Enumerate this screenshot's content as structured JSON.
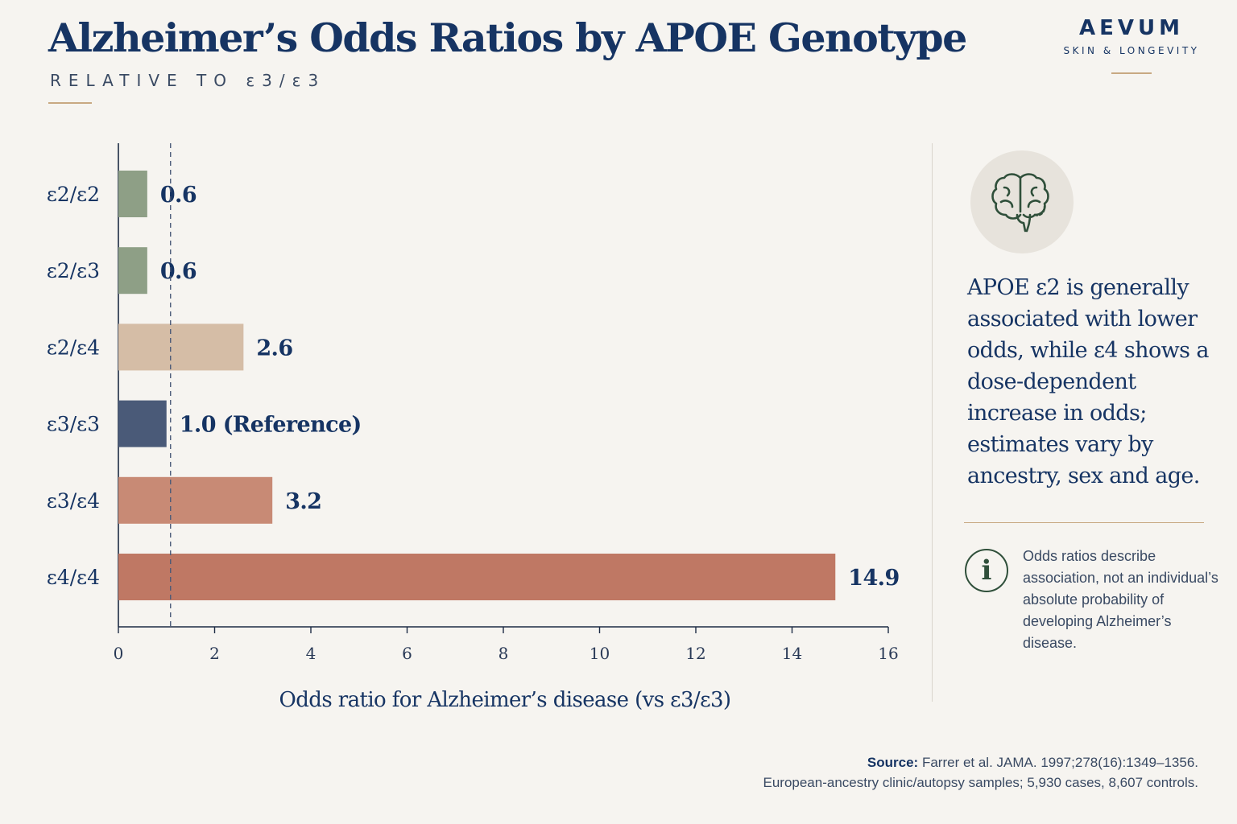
{
  "header": {
    "title": "Alzheimer’s Odds Ratios by APOE Genotype",
    "subtitle": "RELATIVE TO ε3/ε3"
  },
  "brand": {
    "name": "AEVUM",
    "tagline": "SKIN & LONGEVITY"
  },
  "panel": {
    "icon": "brain-icon",
    "text": "APOE ε2 is generally associated with lower odds, while ε4 shows a dose-dependent increase in odds; estimates vary by ancestry, sex and age.",
    "info_icon": "info-icon",
    "info_glyph": "i",
    "note": "Odds ratios describe association, not an individual’s absolute probability of developing Alzheimer’s disease."
  },
  "source": {
    "label": "Source:",
    "citation": "Farrer et al. JAMA. 1997;278(16):1349–1356.",
    "detail": "European-ancestry clinic/autopsy samples; 5,930 cases, 8,607 controls."
  },
  "chart_data": {
    "type": "bar",
    "orientation": "horizontal",
    "categories": [
      "ε2/ε2",
      "ε2/ε3",
      "ε2/ε4",
      "ε3/ε3",
      "ε3/ε4",
      "ε4/ε4"
    ],
    "values": [
      0.6,
      0.6,
      2.6,
      1.0,
      3.2,
      14.9
    ],
    "data_labels": [
      "0.6",
      "0.6",
      "2.6",
      "1.0 (Reference)",
      "3.2",
      "14.9"
    ],
    "colors": [
      "#8e9f86",
      "#8e9f86",
      "#d5bda6",
      "#4a5a78",
      "#c88a75",
      "#bf7864"
    ],
    "label_color": "#163463",
    "xlabel": "Odds ratio for Alzheimer’s disease (vs ε3/ε3)",
    "ylabel": "",
    "xlim": [
      0,
      16
    ],
    "xticks": [
      0,
      2,
      4,
      6,
      8,
      10,
      12,
      14,
      16
    ],
    "reference_line": 1.0,
    "grid": false
  }
}
